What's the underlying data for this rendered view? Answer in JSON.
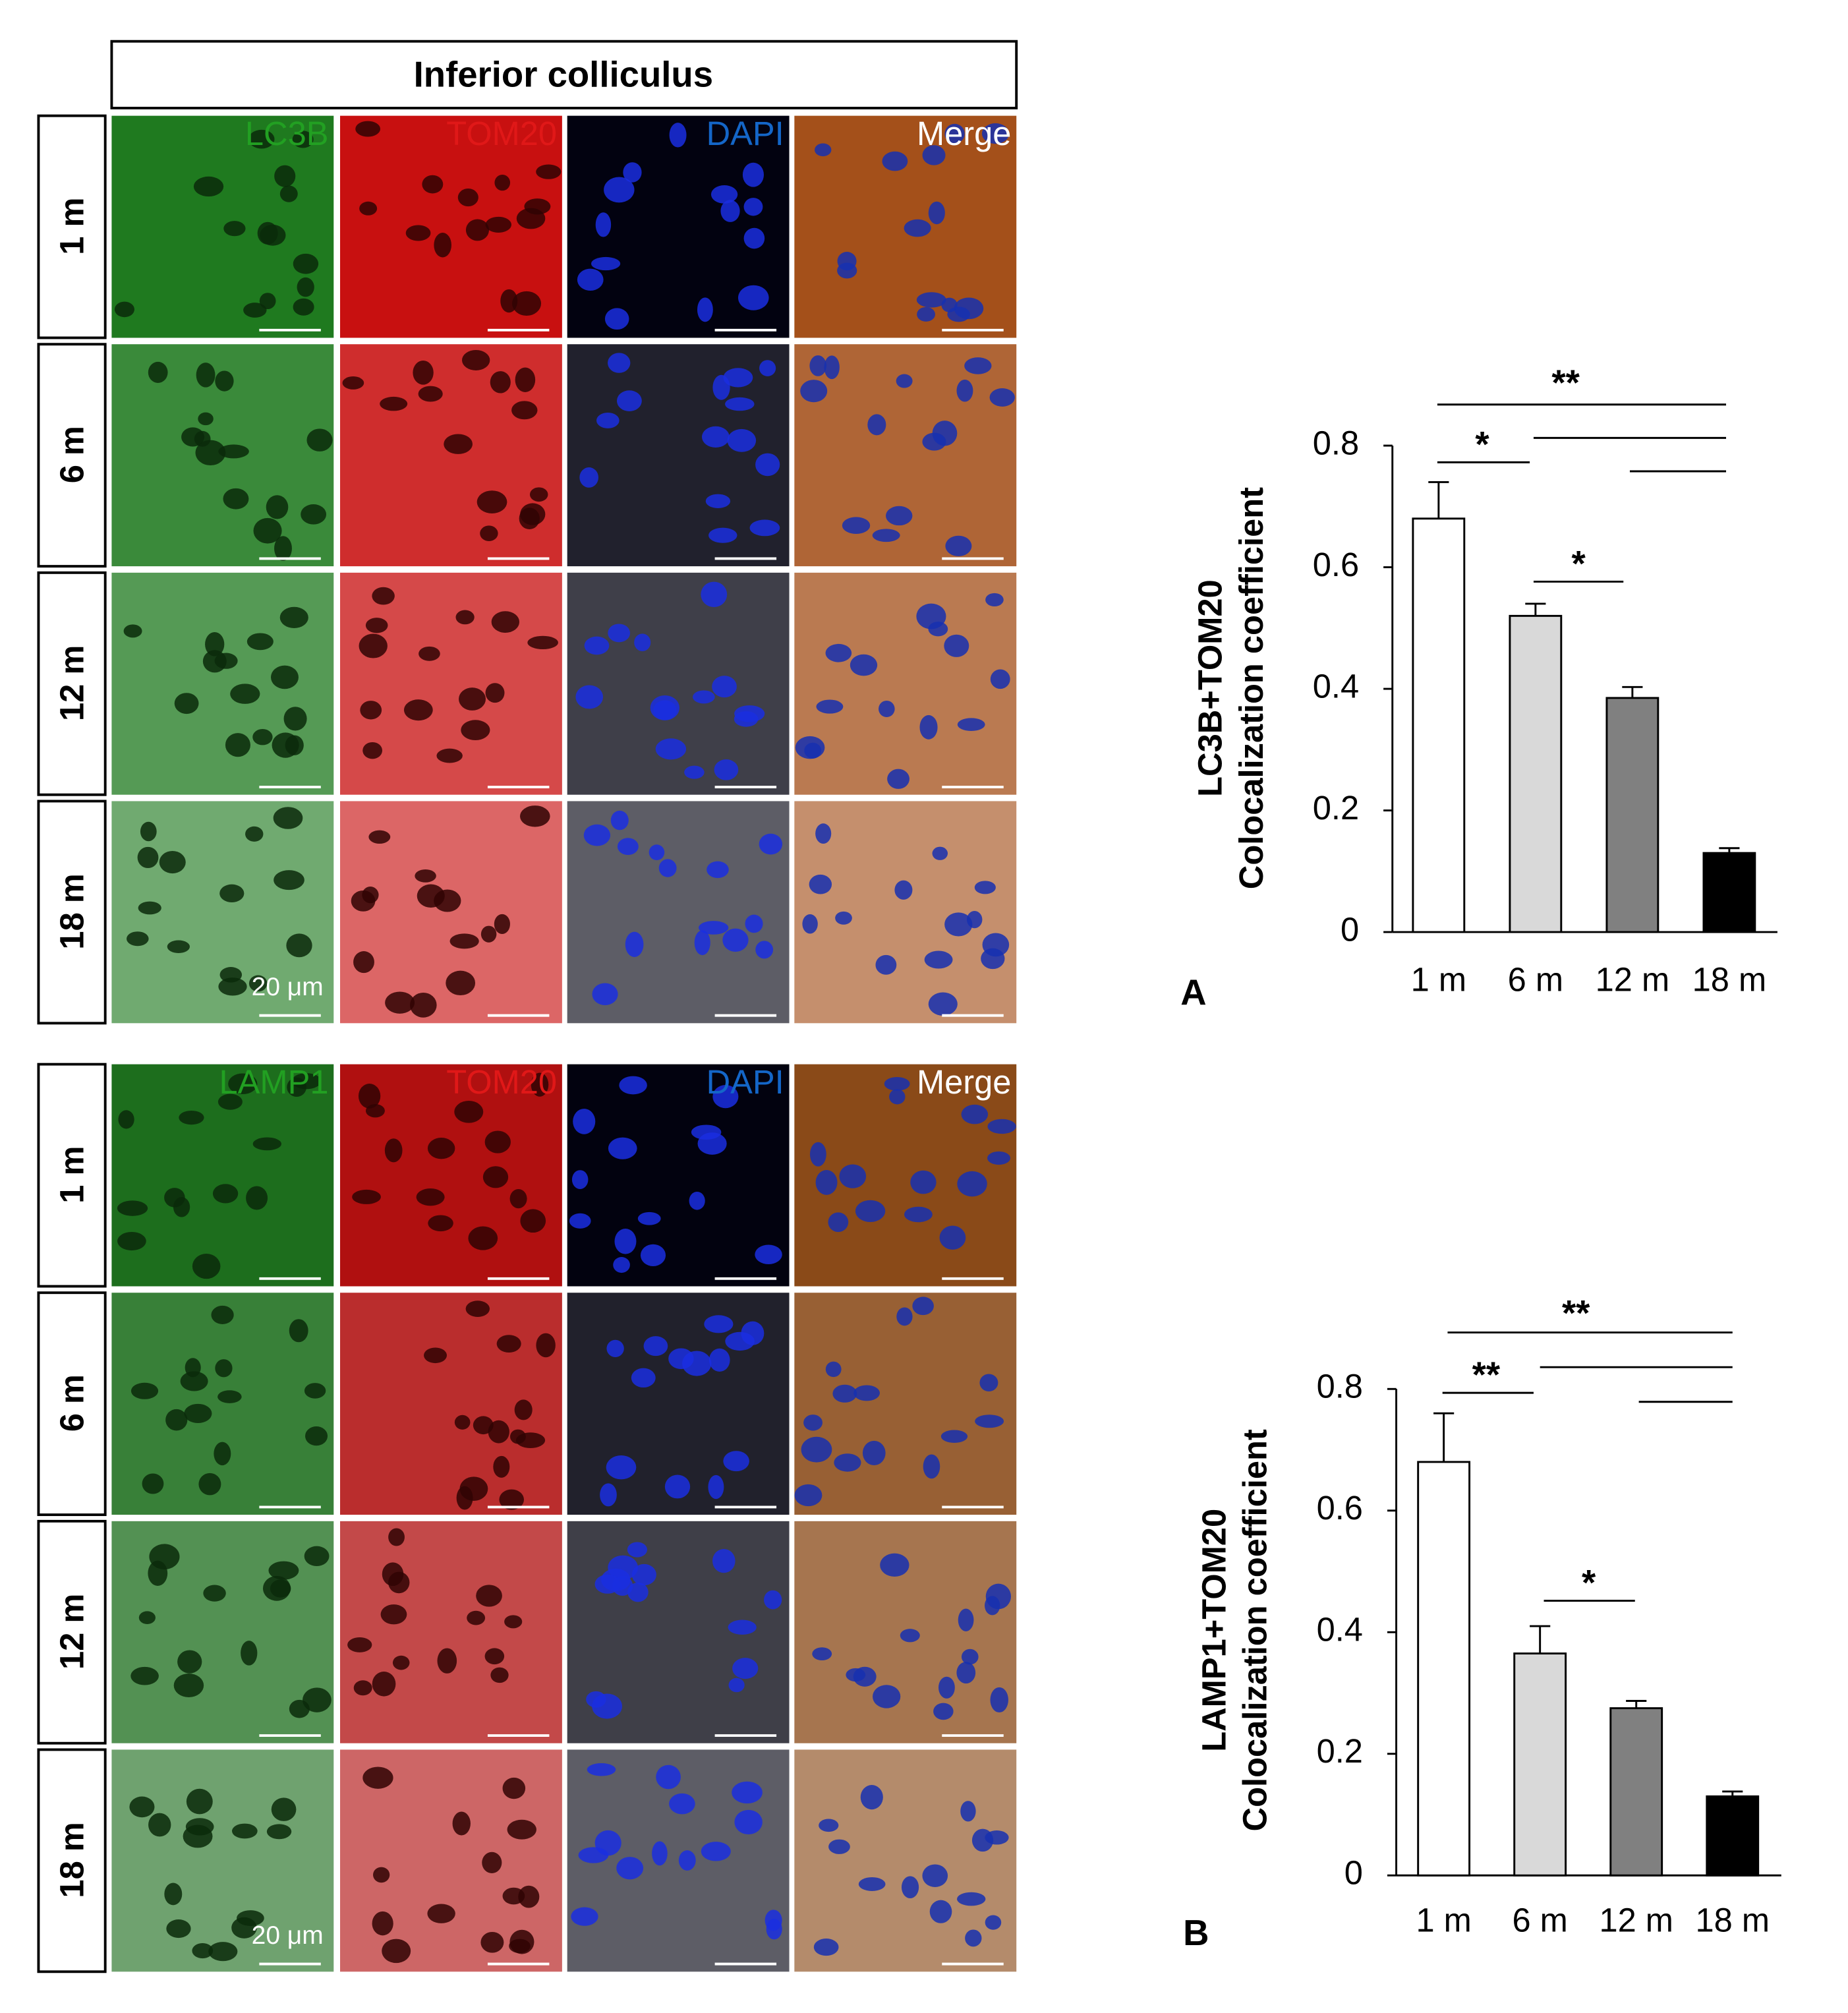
{
  "figure": {
    "title": "Inferior colliculus",
    "panels": [
      {
        "channels": [
          "LC3B",
          "TOM20",
          "DAPI",
          "Merge"
        ],
        "rows": [
          "1 m",
          "6 m",
          "12 m",
          "18 m"
        ],
        "scale_bar": "20 μm"
      },
      {
        "channels": [
          "LAMP1",
          "TOM20",
          "DAPI",
          "Merge"
        ],
        "rows": [
          "1 m",
          "6 m",
          "12 m",
          "18 m"
        ],
        "scale_bar": "20 μm"
      }
    ]
  },
  "chart_data": [
    {
      "type": "bar",
      "label": "A",
      "ylabel": [
        "LC3B+TOM20",
        "Colocalization coefficient"
      ],
      "categories": [
        "1 m",
        "6 m",
        "12 m",
        "18 m"
      ],
      "values": [
        0.68,
        0.52,
        0.385,
        0.13
      ],
      "errors": [
        0.06,
        0.02,
        0.018,
        0.008
      ],
      "colors": [
        "#ffffff",
        "#d9d9d9",
        "#808080",
        "#000000"
      ],
      "ylim": [
        0,
        0.8
      ],
      "yticks": [
        0,
        0.2,
        0.4,
        0.6,
        0.8
      ],
      "annotations": [
        "**",
        "*",
        "*"
      ]
    },
    {
      "type": "bar",
      "label": "B",
      "ylabel": [
        "LAMP1+TOM20",
        "Colocalization coefficient"
      ],
      "categories": [
        "1 m",
        "6 m",
        "12 m",
        "18 m"
      ],
      "values": [
        0.68,
        0.365,
        0.275,
        0.13
      ],
      "errors": [
        0.08,
        0.045,
        0.012,
        0.008
      ],
      "colors": [
        "#ffffff",
        "#d9d9d9",
        "#808080",
        "#000000"
      ],
      "ylim": [
        0,
        0.8
      ],
      "yticks": [
        0,
        0.2,
        0.4,
        0.6,
        0.8
      ],
      "annotations": [
        "**",
        "**",
        "*"
      ]
    }
  ]
}
